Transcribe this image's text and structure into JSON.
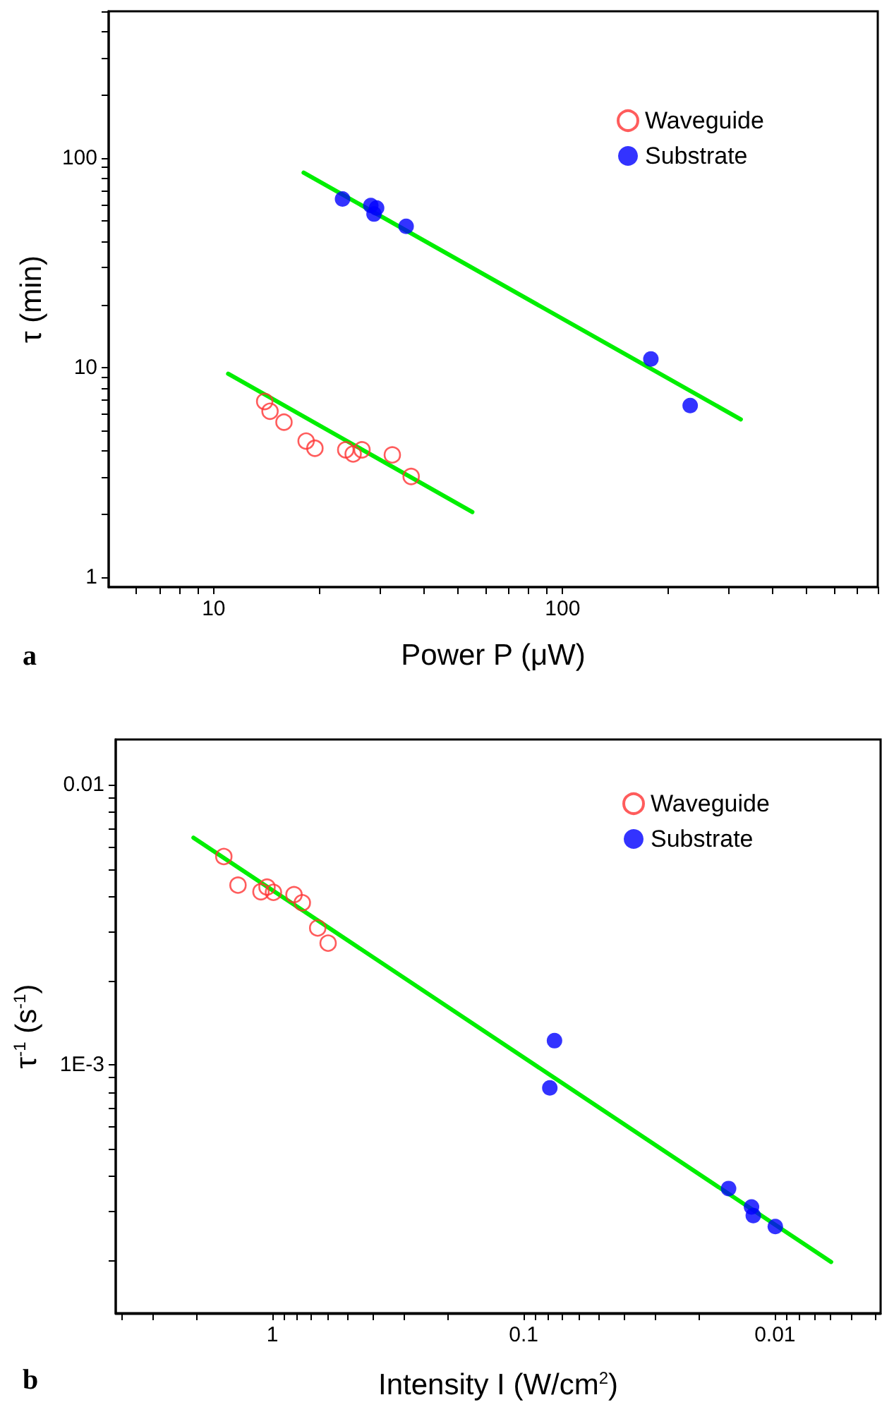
{
  "chart_data": [
    {
      "type": "scatter",
      "xlabel": "Power P (μW)",
      "ylabel": "τ (min)",
      "annotations": [
        "a"
      ],
      "log": "xy",
      "legend": "top right",
      "grid": false,
      "xlim": [
        5,
        800
      ],
      "ylim": [
        0.9,
        500
      ],
      "xticks": [
        {
          "value": 6,
          "label": null
        },
        {
          "value": 7,
          "label": null
        },
        {
          "value": 8,
          "label": null
        },
        {
          "value": 9,
          "label": null
        },
        10,
        {
          "value": 20,
          "label": null
        },
        {
          "value": 30,
          "label": null
        },
        {
          "value": 40,
          "label": null
        },
        {
          "value": 50,
          "label": null
        },
        {
          "value": 60,
          "label": null
        },
        {
          "value": 70,
          "label": null
        },
        {
          "value": 80,
          "label": null
        },
        {
          "value": 90,
          "label": null
        },
        100,
        {
          "value": 200,
          "label": null
        },
        {
          "value": 300,
          "label": null
        },
        {
          "value": 400,
          "label": null
        },
        {
          "value": 500,
          "label": null
        },
        {
          "value": 600,
          "label": null
        },
        {
          "value": 700,
          "label": null
        },
        {
          "value": 800,
          "label": null
        }
      ],
      "yticks": [
        1,
        {
          "value": 2,
          "label": null
        },
        {
          "value": 3,
          "label": null
        },
        {
          "value": 4,
          "label": null
        },
        {
          "value": 5,
          "label": null
        },
        {
          "value": 6,
          "label": null
        },
        {
          "value": 7,
          "label": null
        },
        {
          "value": 8,
          "label": null
        },
        {
          "value": 9,
          "label": null
        },
        10,
        {
          "value": 20,
          "label": null
        },
        {
          "value": 30,
          "label": null
        },
        {
          "value": 40,
          "label": null
        },
        {
          "value": 50,
          "label": null
        },
        {
          "value": 60,
          "label": null
        },
        {
          "value": 70,
          "label": null
        },
        {
          "value": 80,
          "label": null
        },
        {
          "value": 90,
          "label": null
        },
        100,
        {
          "value": 200,
          "label": null
        },
        {
          "value": 300,
          "label": null
        },
        {
          "value": 400,
          "label": null
        },
        {
          "value": 500,
          "label": null
        }
      ],
      "series": [
        {
          "name": "Waveguide",
          "marker": "circle",
          "color": "#ff3333",
          "x": [
            14.0,
            14.5,
            15.9,
            18.4,
            19.5,
            23.9,
            25.1,
            26.6,
            32.5,
            36.8
          ],
          "values": [
            6.9,
            6.2,
            5.5,
            4.47,
            4.13,
            4.06,
            3.88,
            4.06,
            3.84,
            3.03
          ]
        },
        {
          "name": "Substrate",
          "marker": "circle",
          "color": "#0000ff",
          "x": [
            23.4,
            28.2,
            29.3,
            28.8,
            35.6,
            179,
            232
          ],
          "values": [
            63.7,
            59.3,
            57.7,
            54,
            47.2,
            11.0,
            6.6
          ]
        },
        {
          "type": "line",
          "marker": "none",
          "line_style": "solid",
          "color": "#00ee00",
          "x": [
            18.1,
            324
          ],
          "values": [
            85.1,
            5.67
          ]
        },
        {
          "type": "line",
          "marker": "none",
          "line_style": "solid",
          "color": "#00ee00",
          "x": [
            11.0,
            55.1
          ],
          "values": [
            9.36,
            2.05
          ]
        }
      ]
    },
    {
      "type": "scatter",
      "xlabel": "Intensity I (W/cm$^{2}$)",
      "ylabel": "τ$^{-1}$ (s$^{-1}$)",
      "annotations": [
        "b"
      ],
      "log": "xy",
      "legend": "top right",
      "grid": false,
      "xlim": [
        4.2,
        0.0038
      ],
      "ylim": [
        0.00013,
        0.0145
      ],
      "xticks": [
        {
          "value": 4,
          "label": null
        },
        {
          "value": 3,
          "label": null
        },
        {
          "value": 2,
          "label": null
        },
        1,
        {
          "value": 0.9,
          "label": null
        },
        {
          "value": 0.8,
          "label": null
        },
        {
          "value": 0.7,
          "label": null
        },
        {
          "value": 0.6,
          "label": null
        },
        {
          "value": 0.5,
          "label": null
        },
        {
          "value": 0.4,
          "label": null
        },
        {
          "value": 0.3,
          "label": null
        },
        {
          "value": 0.2,
          "label": null
        },
        0.1,
        {
          "value": 0.09,
          "label": null
        },
        {
          "value": 0.08,
          "label": null
        },
        {
          "value": 0.07,
          "label": null
        },
        {
          "value": 0.06,
          "label": null
        },
        {
          "value": 0.05,
          "label": null
        },
        {
          "value": 0.04,
          "label": null
        },
        {
          "value": 0.03,
          "label": null
        },
        {
          "value": 0.02,
          "label": null
        },
        0.01,
        {
          "value": 0.009,
          "label": null
        },
        {
          "value": 0.008,
          "label": null
        },
        {
          "value": 0.007,
          "label": null
        },
        {
          "value": 0.006,
          "label": null
        },
        {
          "value": 0.005,
          "label": null
        },
        {
          "value": 0.004,
          "label": null
        }
      ],
      "yticks": [
        {
          "value": 0.0002,
          "label": null
        },
        {
          "value": 0.0003,
          "label": null
        },
        {
          "value": 0.0004,
          "label": null
        },
        {
          "value": 0.0005,
          "label": null
        },
        {
          "value": 0.0006,
          "label": null
        },
        {
          "value": 0.0007,
          "label": null
        },
        {
          "value": 0.0008,
          "label": null
        },
        {
          "value": 0.0009,
          "label": null
        },
        {
          "value": 0.001,
          "label": "1E-3"
        },
        {
          "value": 0.002,
          "label": null
        },
        {
          "value": 0.003,
          "label": null
        },
        {
          "value": 0.004,
          "label": null
        },
        {
          "value": 0.005,
          "label": null
        },
        {
          "value": 0.006,
          "label": null
        },
        {
          "value": 0.007,
          "label": null
        },
        {
          "value": 0.008,
          "label": null
        },
        {
          "value": 0.009,
          "label": null
        },
        0.01
      ],
      "series": [
        {
          "name": "Waveguide",
          "marker": "circle",
          "color": "#ff3333",
          "x": [
            1.56,
            1.37,
            1.11,
            1.05,
            0.99,
            0.82,
            0.76,
            0.66,
            0.6
          ],
          "values": [
            0.00554,
            0.00438,
            0.00415,
            0.00431,
            0.00413,
            0.00405,
            0.00379,
            0.00308,
            0.00272
          ]
        },
        {
          "name": "Substrate",
          "marker": "circle",
          "color": "#0000ff",
          "x": [
            0.0754,
            0.0787,
            0.0153,
            0.0124,
            0.0122,
            0.00997
          ],
          "values": [
            0.00122,
            0.000828,
            0.000362,
            0.000311,
            0.00029,
            0.000265
          ]
        },
        {
          "type": "line",
          "marker": "none",
          "line_style": "solid",
          "color": "#00ee00",
          "x": [
            2.06,
            0.00598
          ],
          "values": [
            0.00647,
            0.000198
          ]
        }
      ]
    }
  ]
}
